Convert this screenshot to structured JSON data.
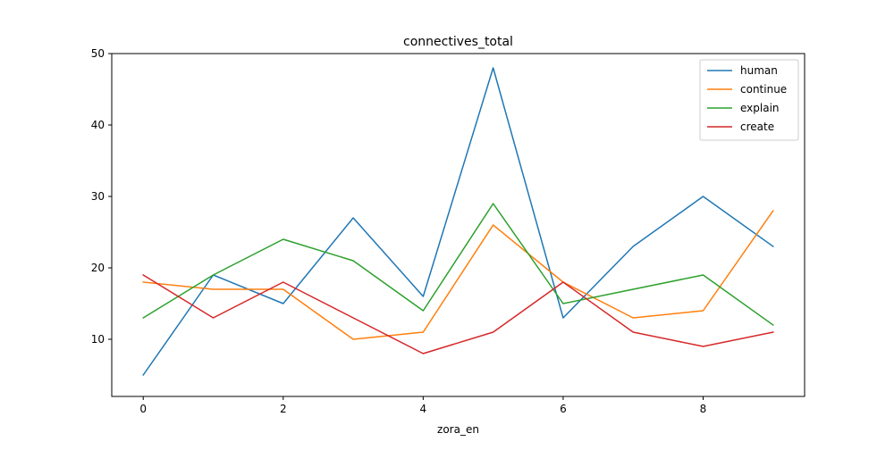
{
  "chart_data": {
    "type": "line",
    "title": "connectives_total",
    "xlabel": "zora_en",
    "ylabel": "",
    "x": [
      0,
      1,
      2,
      3,
      4,
      5,
      6,
      7,
      8,
      9
    ],
    "xlim": [
      -0.45,
      9.45
    ],
    "ylim": [
      2.0,
      50.0
    ],
    "x_ticks": [
      0,
      2,
      4,
      6,
      8
    ],
    "y_ticks": [
      10,
      20,
      30,
      40,
      50
    ],
    "grid": false,
    "legend_position": "top-right",
    "series": [
      {
        "name": "human",
        "color": "#1f77b4",
        "values": [
          5,
          19,
          15,
          27,
          16,
          48,
          13,
          23,
          30,
          23
        ]
      },
      {
        "name": "continue",
        "color": "#ff7f0e",
        "values": [
          18,
          17,
          17,
          10,
          11,
          26,
          18,
          13,
          14,
          28
        ]
      },
      {
        "name": "explain",
        "color": "#2ca02c",
        "values": [
          13,
          19,
          24,
          21,
          14,
          29,
          15,
          17,
          19,
          12
        ]
      },
      {
        "name": "create",
        "color": "#d62728",
        "values": [
          19,
          13,
          18,
          13,
          8,
          11,
          18,
          11,
          9,
          11
        ]
      }
    ]
  }
}
